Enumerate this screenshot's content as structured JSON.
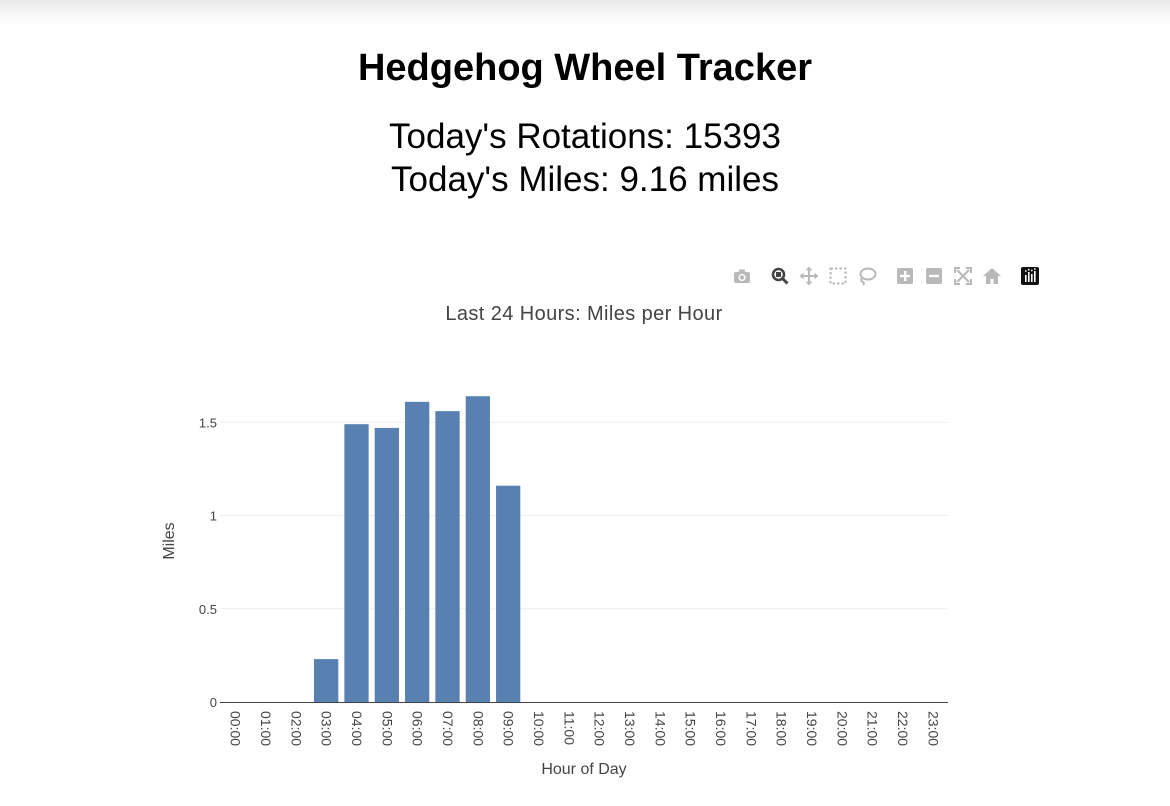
{
  "header": {
    "title": "Hedgehog Wheel Tracker",
    "rotations_label": "Today's Rotations:",
    "rotations_value": "15393",
    "miles_label": "Today's Miles:",
    "miles_value": "9.16 miles"
  },
  "modebar": {
    "icons": [
      "camera-icon",
      "zoom-icon",
      "pan-icon",
      "box-select-icon",
      "lasso-select-icon",
      "zoom-in-icon",
      "zoom-out-icon",
      "autoscale-icon",
      "reset-axes-icon",
      "plotly-logo-icon"
    ]
  },
  "chart_data": {
    "type": "bar",
    "title": "Last 24 Hours: Miles per Hour",
    "xlabel": "Hour of Day",
    "ylabel": "Miles",
    "categories": [
      "00:00",
      "01:00",
      "02:00",
      "03:00",
      "04:00",
      "05:00",
      "06:00",
      "07:00",
      "08:00",
      "09:00",
      "10:00",
      "11:00",
      "12:00",
      "13:00",
      "14:00",
      "15:00",
      "16:00",
      "17:00",
      "18:00",
      "19:00",
      "20:00",
      "21:00",
      "22:00",
      "23:00"
    ],
    "values": [
      0,
      0,
      0,
      0.23,
      1.49,
      1.47,
      1.61,
      1.56,
      1.64,
      1.16,
      0,
      0,
      0,
      0,
      0,
      0,
      0,
      0,
      0,
      0,
      0,
      0,
      0,
      0
    ],
    "yticks": [
      0,
      0.5,
      1,
      1.5
    ],
    "ytick_labels": [
      "0",
      "0.5",
      "1",
      "1.5"
    ],
    "ylim": [
      0,
      1.727
    ],
    "grid": true,
    "bar_color": "#5880b1",
    "grid_color": "#eeeeee"
  }
}
